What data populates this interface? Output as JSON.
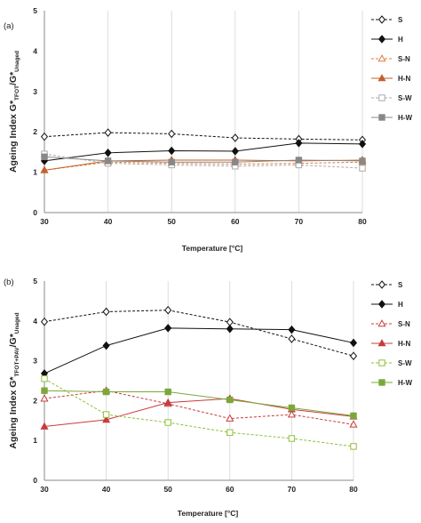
{
  "chart_data": [
    {
      "type": "line",
      "panel_label": "(a)",
      "ylabel": {
        "main": "Ageing Index G*",
        "sub1": "TFOT",
        "mid": "/G*",
        "sub2": "Unaged"
      },
      "xlabel": "Temperature [°C]",
      "x": [
        30,
        40,
        50,
        60,
        70,
        80
      ],
      "xlim": [
        30,
        80
      ],
      "ylim": [
        0,
        5
      ],
      "yticks": [
        "0",
        "1",
        "2",
        "3",
        "4",
        "5"
      ],
      "xticks": [
        "30",
        "40",
        "50",
        "60",
        "70",
        "80"
      ],
      "grid": "vertical",
      "legend": "right",
      "series": [
        {
          "name": "S",
          "color": "#111111",
          "dash": "3,2",
          "marker": "diamond-open",
          "values": [
            1.88,
            1.98,
            1.95,
            1.85,
            1.82,
            1.8
          ]
        },
        {
          "name": "H",
          "color": "#111111",
          "dash": "",
          "marker": "diamond-fill",
          "values": [
            1.28,
            1.48,
            1.53,
            1.52,
            1.72,
            1.7
          ]
        },
        {
          "name": "S-N",
          "color": "#e07b39",
          "dash": "3,2",
          "marker": "triangle-open",
          "values": [
            1.05,
            1.25,
            1.22,
            1.2,
            1.22,
            1.25
          ]
        },
        {
          "name": "H-N",
          "color": "#c0622a",
          "dash": "",
          "marker": "triangle-fill",
          "values": [
            1.05,
            1.28,
            1.3,
            1.3,
            1.28,
            1.3
          ]
        },
        {
          "name": "S-W",
          "color": "#aaaaaa",
          "dash": "3,2",
          "marker": "square-open",
          "values": [
            1.45,
            1.22,
            1.18,
            1.15,
            1.18,
            1.1
          ]
        },
        {
          "name": "H-W",
          "color": "#888888",
          "dash": "",
          "marker": "square-fill",
          "values": [
            1.38,
            1.28,
            1.25,
            1.25,
            1.3,
            1.28
          ]
        }
      ]
    },
    {
      "type": "line",
      "panel_label": "(b)",
      "ylabel": {
        "main": "Ageing Index G*",
        "sub1": "TFOT+PAV",
        "mid": "/G*",
        "sub2": "Unaged"
      },
      "xlabel": "Temperature [°C]",
      "x": [
        30,
        40,
        50,
        60,
        70,
        80
      ],
      "xlim": [
        30,
        80
      ],
      "ylim": [
        0,
        5
      ],
      "yticks": [
        "0",
        "1",
        "2",
        "3",
        "4",
        "5"
      ],
      "xticks": [
        "30",
        "40",
        "50",
        "60",
        "70",
        "80"
      ],
      "grid": "vertical",
      "legend": "right",
      "series": [
        {
          "name": "S",
          "color": "#111111",
          "dash": "3,2",
          "marker": "diamond-open",
          "values": [
            3.98,
            4.23,
            4.27,
            3.97,
            3.55,
            3.12
          ]
        },
        {
          "name": "H",
          "color": "#111111",
          "dash": "",
          "marker": "diamond-fill",
          "values": [
            2.68,
            3.38,
            3.82,
            3.8,
            3.78,
            3.45
          ]
        },
        {
          "name": "S-N",
          "color": "#c83c3c",
          "dash": "3,2",
          "marker": "triangle-open",
          "values": [
            2.05,
            2.25,
            1.92,
            1.55,
            1.65,
            1.4
          ]
        },
        {
          "name": "H-N",
          "color": "#c83c3c",
          "dash": "",
          "marker": "triangle-fill",
          "values": [
            1.35,
            1.52,
            1.95,
            2.05,
            1.78,
            1.6
          ]
        },
        {
          "name": "S-W",
          "color": "#8fbf3a",
          "dash": "3,2",
          "marker": "square-open",
          "values": [
            2.55,
            1.65,
            1.45,
            1.2,
            1.05,
            0.85
          ]
        },
        {
          "name": "H-W",
          "color": "#7aa83a",
          "dash": "",
          "marker": "square-fill",
          "values": [
            2.25,
            2.22,
            2.22,
            2.02,
            1.82,
            1.62
          ]
        }
      ]
    }
  ]
}
